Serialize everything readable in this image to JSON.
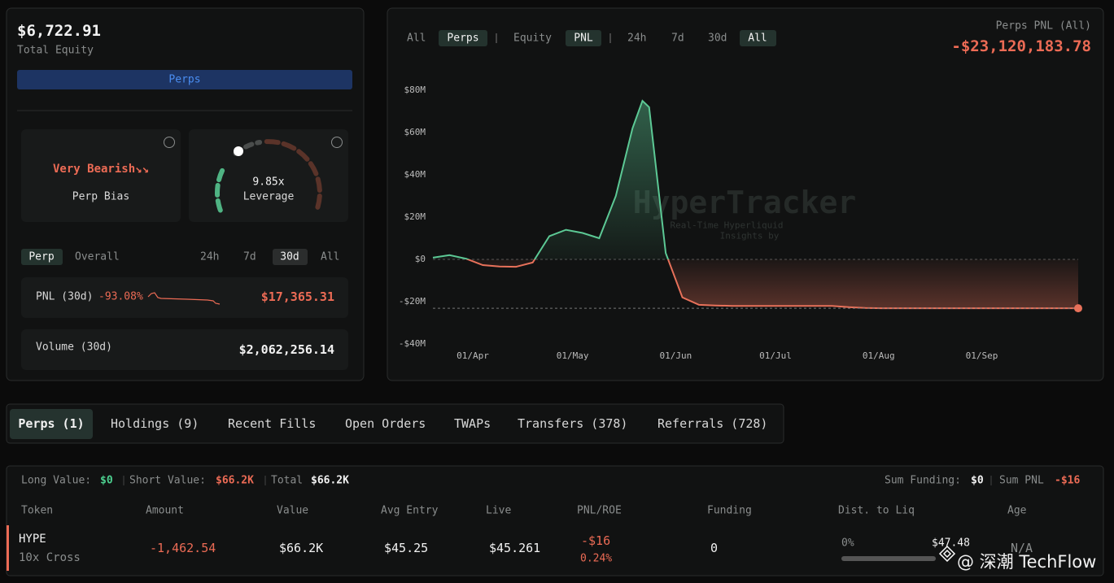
{
  "account": {
    "equity": "$6,722.91",
    "equity_label": "Total Equity",
    "tab": "Perps",
    "bias": {
      "value": "Very Bearish↘↘",
      "label": "Perp Bias"
    },
    "leverage": {
      "value": "9.85x",
      "label": "Leverage"
    },
    "tabs": [
      "Perp",
      "Overall",
      "24h",
      "7d",
      "30d",
      "All"
    ],
    "pnl": {
      "label": "PNL (30d)",
      "change": "-93.08%",
      "value": "$17,365.31"
    },
    "volume": {
      "label": "Volume (30d)",
      "value": "$2,062,256.14"
    }
  },
  "chart_filters": [
    "All",
    "Perps",
    "Equity",
    "PNL",
    "24h",
    "7d",
    "30d",
    "All"
  ],
  "chart_data": {
    "type": "line",
    "title": "Perps PNL (All)",
    "total": "-$23,120,183.78",
    "watermark": [
      "HyperTracker",
      "Real-Time Hyperliquid",
      "Insights by"
    ],
    "x": [
      79,
      84,
      89,
      94,
      99,
      104,
      109,
      114,
      119,
      124,
      129,
      134,
      139,
      142,
      144,
      149,
      154,
      159,
      164,
      169,
      174,
      179,
      184,
      189,
      194,
      199,
      204,
      209,
      214,
      219,
      224,
      229,
      234,
      239,
      244,
      249,
      254,
      259,
      264,
      269,
      273
    ],
    "values": [
      0.8,
      2,
      0.3,
      -2.7,
      -3.4,
      -3.5,
      -1.5,
      11,
      14,
      12.5,
      10,
      30,
      62,
      75,
      72,
      3,
      -18,
      -21.5,
      -21.8,
      -22,
      -22,
      -22,
      -22,
      -22,
      -22,
      -22,
      -22.6,
      -23,
      -23.1,
      -23.1,
      -23.1,
      -23.1,
      -23.1,
      -23.1,
      -23.1,
      -23.1,
      -23.1,
      -23.1,
      -23.1,
      -23.1,
      -23.12
    ],
    "positive_color": "#5cc995",
    "negative_color": "#e8715a",
    "xlim": [
      79,
      273
    ],
    "xticks": [
      {
        "value": 91,
        "label": "01/Apr"
      },
      {
        "value": 121,
        "label": "01/May"
      },
      {
        "value": 152,
        "label": "01/Jun"
      },
      {
        "value": 182,
        "label": "01/Jul"
      },
      {
        "value": 213,
        "label": "01/Aug"
      },
      {
        "value": 244,
        "label": "01/Sep"
      }
    ],
    "ylim": [
      -40,
      80
    ],
    "yticks": [
      {
        "value": -40,
        "label": "-$40M"
      },
      {
        "value": -20,
        "label": "-$20M"
      },
      {
        "value": 0,
        "label": "$0"
      },
      {
        "value": 20,
        "label": "$20M"
      },
      {
        "value": 40,
        "label": "$40M"
      },
      {
        "value": 60,
        "label": "$60M"
      },
      {
        "value": 80,
        "label": "$80M"
      }
    ],
    "zero_line": true
  },
  "tabs": [
    "Perps (1)",
    "Holdings (9)",
    "Recent Fills",
    "Open Orders",
    "TWAPs",
    "Transfers (378)",
    "Referrals (728)"
  ],
  "table": {
    "summary": {
      "long_label": "Long Value:",
      "long": "$0",
      "short_label": "Short Value:",
      "short": "$66.2K",
      "total_label": "Total",
      "total": "$66.2K",
      "funding_label": "Sum Funding:",
      "funding": "$0",
      "pnl_label": "Sum PNL",
      "pnl": "-$16"
    },
    "headers": [
      "Token",
      "Amount",
      "Value",
      "Avg Entry",
      "Live",
      "PNL/ROE",
      "Funding",
      "Dist. to Liq",
      "Age"
    ],
    "rows": [
      [
        "HYPE",
        "10x Cross",
        "-1,462.54",
        "$66.2K",
        "$45.25",
        "$45.261",
        "-$16",
        "0.24%",
        "0",
        "0%",
        "$47.48",
        "N/A"
      ]
    ]
  },
  "footer_watermark": "@ 深潮 TechFlow"
}
